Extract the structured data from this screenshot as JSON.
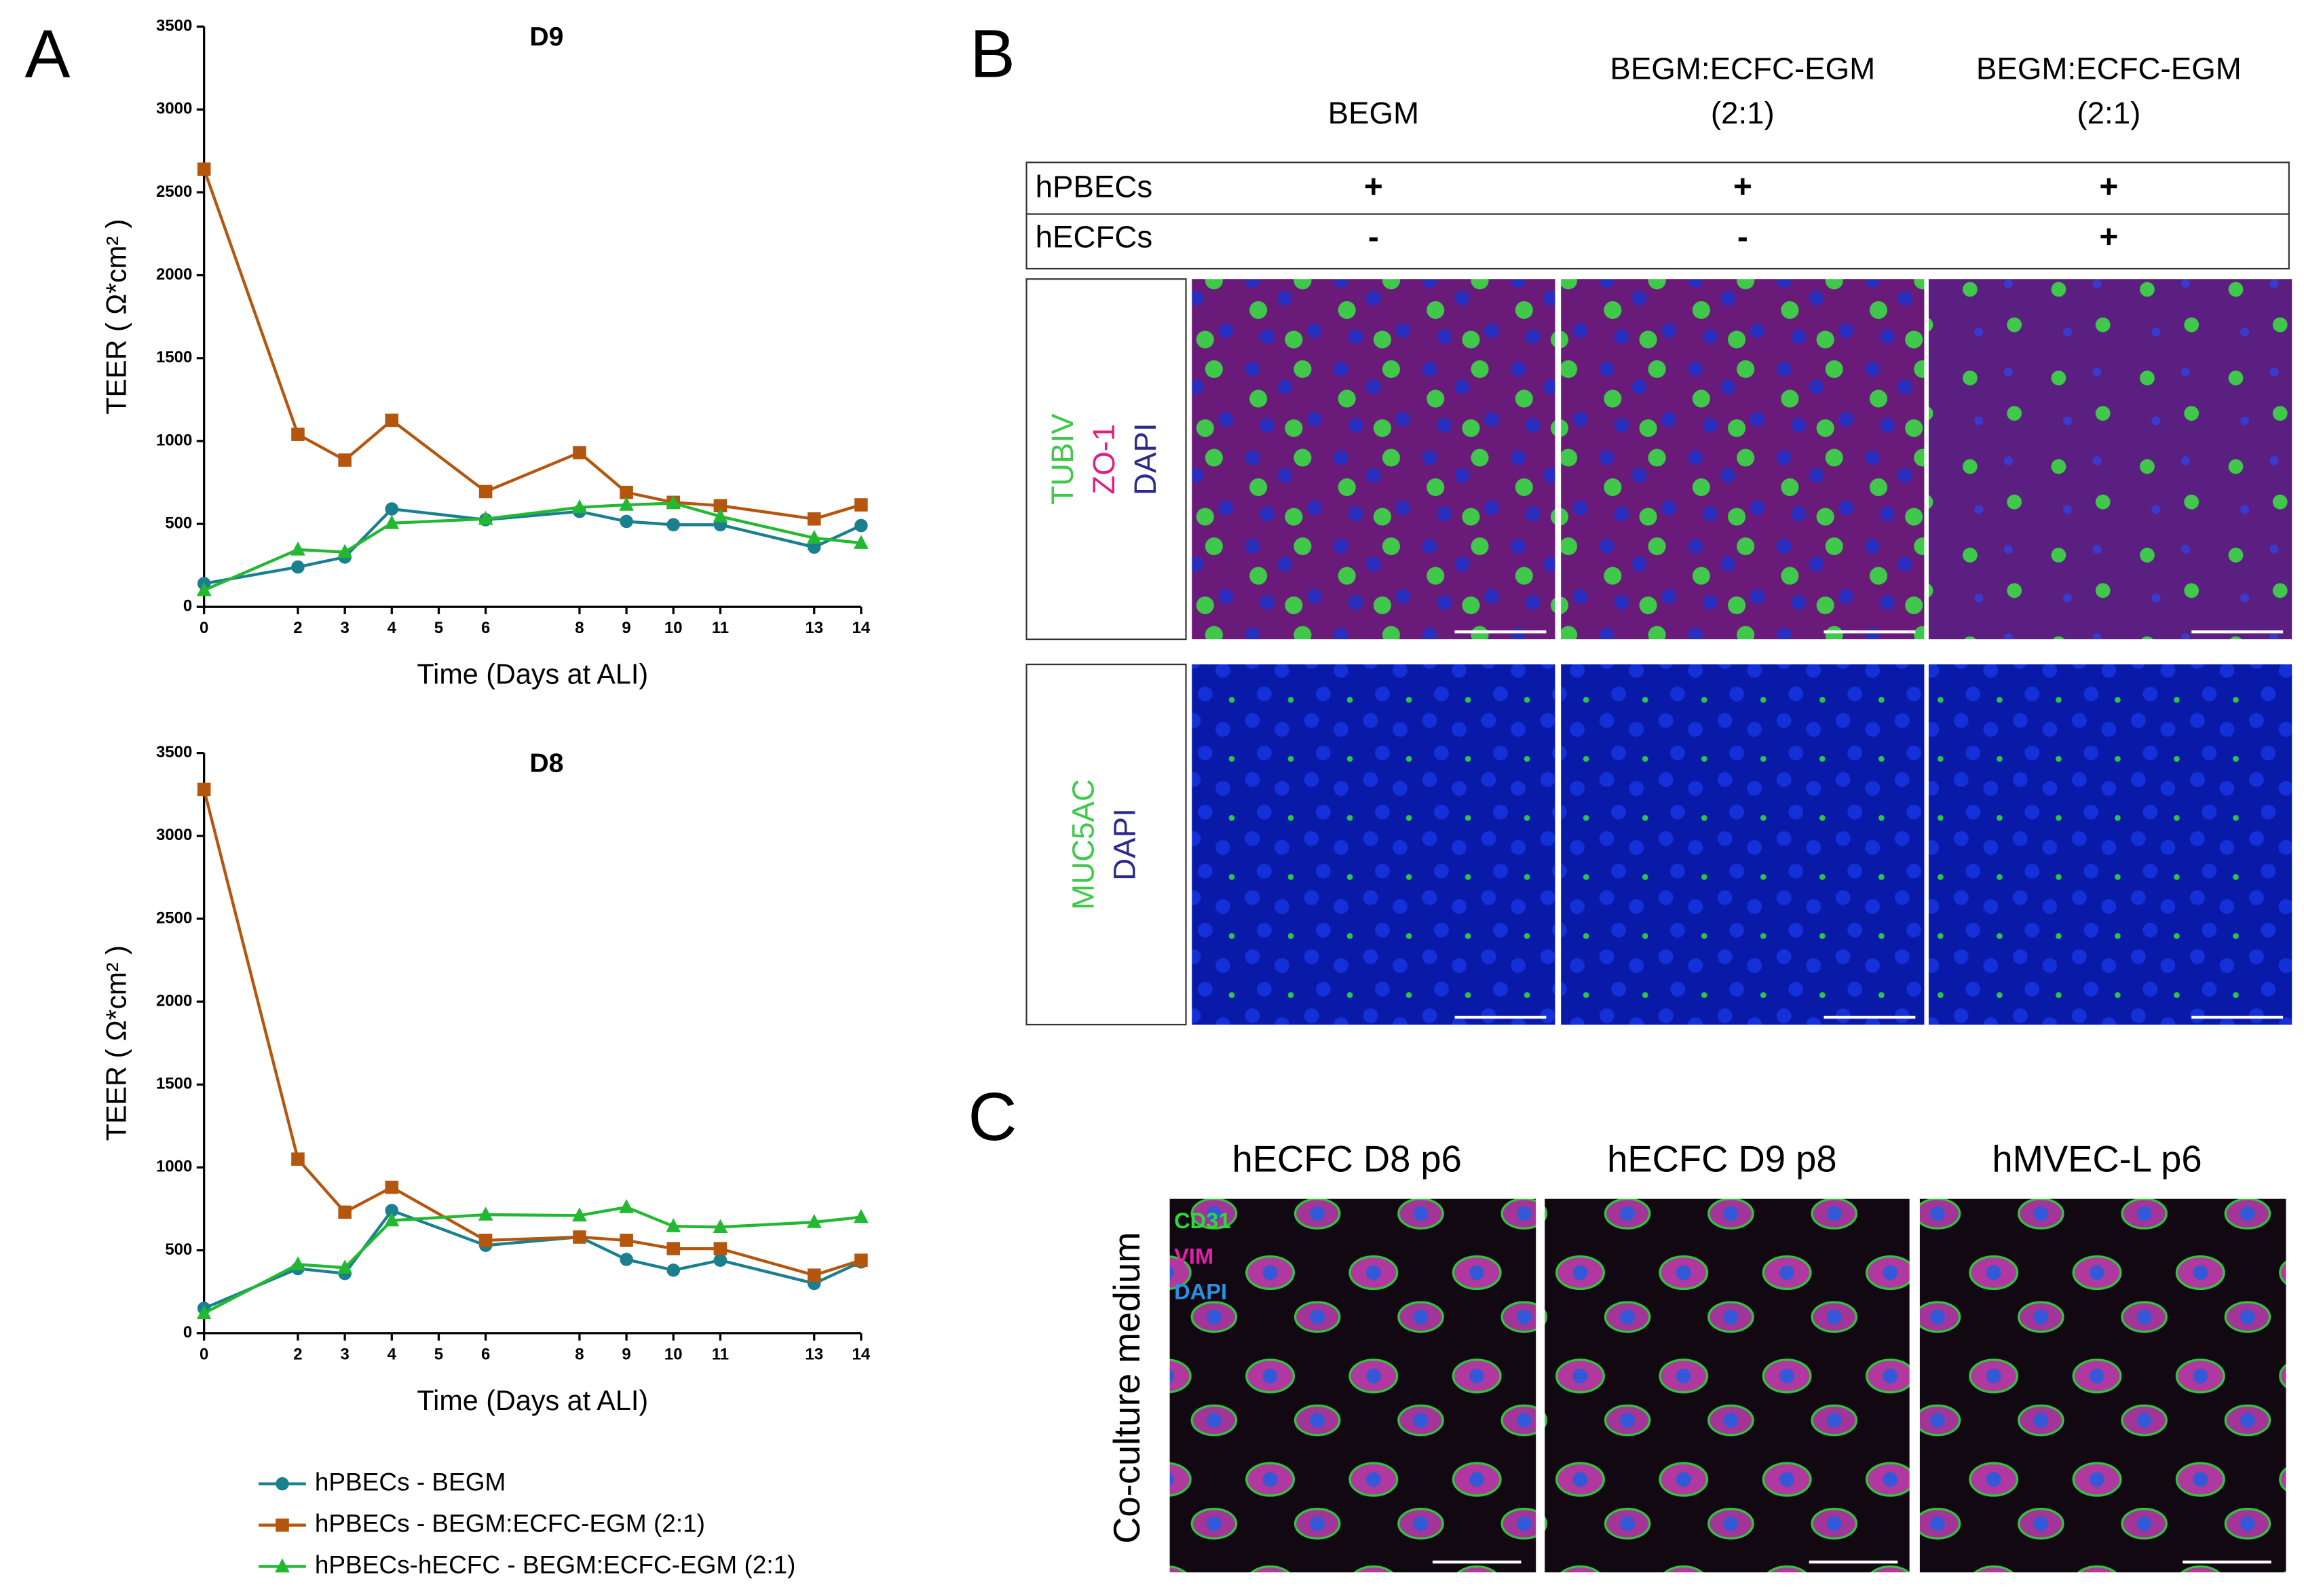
{
  "panel_labels": [
    "A",
    "B",
    "C"
  ],
  "chart_data": [
    {
      "type": "line",
      "title": "D9",
      "xlabel": "Time (Days at ALI)",
      "ylabel": "TEER ( Ω*cm² )",
      "x": [
        0,
        2,
        3,
        4,
        6,
        8,
        9,
        10,
        11,
        13,
        14
      ],
      "xlim": [
        0,
        14
      ],
      "xticks": [
        0,
        2,
        3,
        4,
        5,
        6,
        8,
        9,
        10,
        11,
        13,
        14
      ],
      "ylim": [
        0,
        3500
      ],
      "yticks": [
        0,
        500,
        1000,
        1500,
        2000,
        2500,
        3000,
        3500
      ],
      "series": [
        {
          "name": "hPBECs - BEGM",
          "color": "#1a7f8e",
          "marker": "circle",
          "values": [
            140,
            240,
            300,
            590,
            525,
            575,
            515,
            495,
            495,
            360,
            490
          ]
        },
        {
          "name": "hPBECs - BEGM:ECFC-EGM (2:1)",
          "color": "#b5560f",
          "marker": "square",
          "values": [
            2640,
            1040,
            885,
            1125,
            695,
            930,
            690,
            630,
            610,
            530,
            615
          ]
        },
        {
          "name": "hPBECs-hECFC - BEGM:ECFC-EGM (2:1)",
          "color": "#22b832",
          "marker": "triangle",
          "values": [
            100,
            345,
            330,
            505,
            530,
            600,
            615,
            625,
            545,
            415,
            385
          ]
        }
      ]
    },
    {
      "type": "line",
      "title": "D8",
      "xlabel": "Time (Days at ALI)",
      "ylabel": "TEER ( Ω*cm² )",
      "x": [
        0,
        2,
        3,
        4,
        6,
        8,
        9,
        10,
        11,
        13,
        14
      ],
      "xlim": [
        0,
        14
      ],
      "xticks": [
        0,
        2,
        3,
        4,
        5,
        6,
        8,
        9,
        10,
        11,
        13,
        14
      ],
      "ylim": [
        0,
        3500
      ],
      "yticks": [
        0,
        500,
        1000,
        1500,
        2000,
        2500,
        3000,
        3500
      ],
      "series": [
        {
          "color": "#1a7f8e",
          "marker": "circle",
          "values": [
            150,
            390,
            360,
            740,
            530,
            580,
            445,
            380,
            440,
            300,
            430
          ]
        },
        {
          "color": "#b5560f",
          "marker": "square",
          "values": [
            3280,
            1050,
            730,
            880,
            560,
            580,
            560,
            510,
            510,
            350,
            440
          ]
        },
        {
          "color": "#22b832",
          "marker": "triangle",
          "values": [
            120,
            415,
            395,
            680,
            715,
            710,
            760,
            645,
            640,
            670,
            700
          ]
        }
      ]
    }
  ],
  "panel_b": {
    "columns": [
      [
        "BEGM"
      ],
      [
        "BEGM:ECFC-EGM",
        "(2:1)"
      ],
      [
        "BEGM:ECFC-EGM",
        "(2:1)"
      ]
    ],
    "rows": [
      {
        "label": "hPBECs",
        "values": [
          "+",
          "+",
          "+"
        ]
      },
      {
        "label": "hECFCs",
        "values": [
          "-",
          "-",
          "+"
        ]
      }
    ],
    "stains": [
      [
        "TUBIV",
        "ZO-1",
        "DAPI"
      ],
      [
        "MUC5AC",
        "DAPI"
      ]
    ]
  },
  "panel_c": {
    "columns": [
      "hECFC D8 p6",
      "hECFC D9 p8",
      "hMVEC-L p6"
    ],
    "row_label": "Co-culture medium",
    "stains": [
      "CD31",
      "VIM",
      "DAPI"
    ]
  }
}
